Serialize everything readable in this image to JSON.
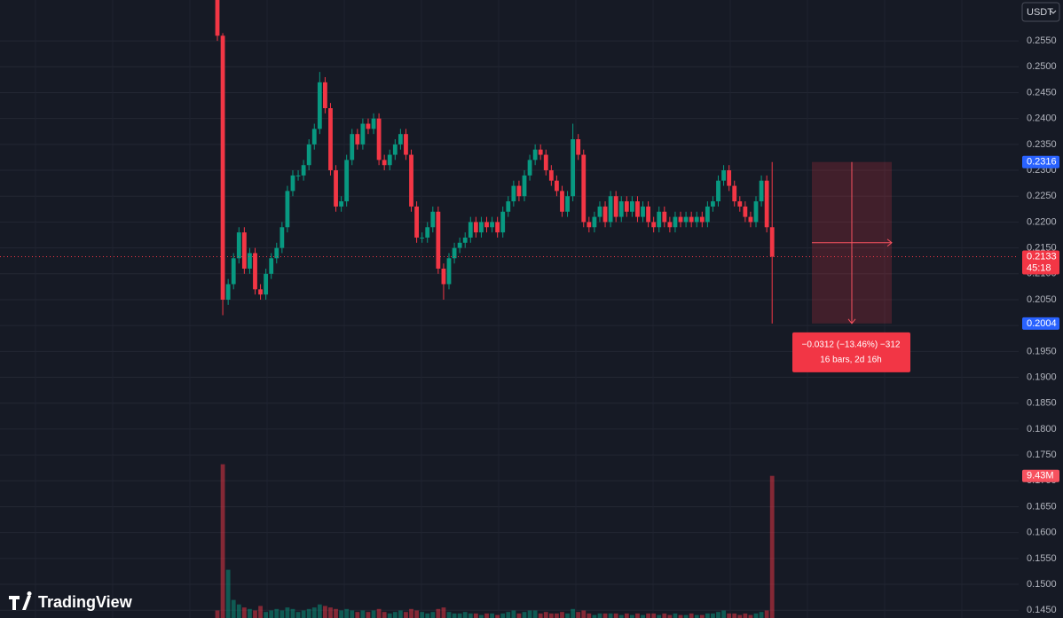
{
  "chart_data": {
    "type": "candlestick",
    "currency": "USDT",
    "up_color": "#089981",
    "down_color": "#f23645",
    "grid": true,
    "ylim": [
      0.1435,
      0.2629
    ],
    "yticks": [
      {
        "value": 0.145,
        "label": "0.1450"
      },
      {
        "value": 0.15,
        "label": "0.1500"
      },
      {
        "value": 0.155,
        "label": "0.1550"
      },
      {
        "value": 0.16,
        "label": "0.1600"
      },
      {
        "value": 0.165,
        "label": "0.1650"
      },
      {
        "value": 0.17,
        "label": "0.1700"
      },
      {
        "value": 0.175,
        "label": "0.1750"
      },
      {
        "value": 0.18,
        "label": "0.1800"
      },
      {
        "value": 0.185,
        "label": "0.1850"
      },
      {
        "value": 0.19,
        "label": "0.1900"
      },
      {
        "value": 0.195,
        "label": "0.1950"
      },
      {
        "value": 0.2,
        "label": "0.2000"
      },
      {
        "value": 0.205,
        "label": "0.2050"
      },
      {
        "value": 0.21,
        "label": "0.2100"
      },
      {
        "value": 0.215,
        "label": "0.2150"
      },
      {
        "value": 0.22,
        "label": "0.2200"
      },
      {
        "value": 0.225,
        "label": "0.2250"
      },
      {
        "value": 0.23,
        "label": "0.2300"
      },
      {
        "value": 0.235,
        "label": "0.2350"
      },
      {
        "value": 0.24,
        "label": "0.2400"
      },
      {
        "value": 0.245,
        "label": "0.2450"
      },
      {
        "value": 0.25,
        "label": "0.2500"
      },
      {
        "value": 0.255,
        "label": "0.2550"
      }
    ],
    "open": [
      0.264,
      0.256,
      0.205,
      0.208,
      0.213,
      0.218,
      0.211,
      0.214,
      0.207,
      0.206,
      0.21,
      0.213,
      0.215,
      0.219,
      0.226,
      0.229,
      0.229,
      0.231,
      0.235,
      0.238,
      0.247,
      0.242,
      0.23,
      0.223,
      0.224,
      0.232,
      0.237,
      0.235,
      0.239,
      0.238,
      0.24,
      0.232,
      0.231,
      0.233,
      0.235,
      0.237,
      0.233,
      0.223,
      0.217,
      0.217,
      0.219,
      0.222,
      0.211,
      0.208,
      0.213,
      0.215,
      0.216,
      0.217,
      0.22,
      0.218,
      0.22,
      0.219,
      0.22,
      0.218,
      0.222,
      0.224,
      0.227,
      0.225,
      0.229,
      0.232,
      0.234,
      0.233,
      0.23,
      0.228,
      0.226,
      0.222,
      0.225,
      0.236,
      0.233,
      0.22,
      0.219,
      0.221,
      0.223,
      0.22,
      0.225,
      0.221,
      0.224,
      0.222,
      0.224,
      0.221,
      0.223,
      0.22,
      0.219,
      0.222,
      0.22,
      0.219,
      0.221,
      0.22,
      0.221,
      0.22,
      0.221,
      0.22,
      0.223,
      0.224,
      0.228,
      0.23,
      0.227,
      0.224,
      0.223,
      0.221,
      0.22,
      0.224,
      0.228,
      0.219
    ],
    "high": [
      0.265,
      0.2565,
      0.209,
      0.214,
      0.219,
      0.219,
      0.215,
      0.215,
      0.208,
      0.211,
      0.214,
      0.216,
      0.22,
      0.227,
      0.23,
      0.23,
      0.232,
      0.236,
      0.239,
      0.249,
      0.248,
      0.243,
      0.231,
      0.225,
      0.233,
      0.238,
      0.238,
      0.24,
      0.24,
      0.241,
      0.241,
      0.233,
      0.234,
      0.236,
      0.238,
      0.238,
      0.234,
      0.224,
      0.218,
      0.22,
      0.223,
      0.223,
      0.212,
      0.214,
      0.216,
      0.217,
      0.218,
      0.221,
      0.221,
      0.221,
      0.221,
      0.221,
      0.221,
      0.223,
      0.225,
      0.228,
      0.228,
      0.23,
      0.233,
      0.235,
      0.235,
      0.234,
      0.231,
      0.229,
      0.227,
      0.226,
      0.239,
      0.237,
      0.234,
      0.221,
      0.222,
      0.224,
      0.224,
      0.226,
      0.226,
      0.225,
      0.225,
      0.225,
      0.225,
      0.224,
      0.224,
      0.221,
      0.223,
      0.223,
      0.221,
      0.222,
      0.222,
      0.222,
      0.222,
      0.222,
      0.222,
      0.224,
      0.225,
      0.229,
      0.231,
      0.231,
      0.228,
      0.225,
      0.224,
      0.222,
      0.225,
      0.229,
      0.229,
      0.2316
    ],
    "low": [
      0.255,
      0.202,
      0.204,
      0.207,
      0.212,
      0.21,
      0.21,
      0.206,
      0.205,
      0.205,
      0.209,
      0.212,
      0.214,
      0.218,
      0.225,
      0.228,
      0.228,
      0.23,
      0.234,
      0.237,
      0.241,
      0.229,
      0.222,
      0.222,
      0.223,
      0.231,
      0.234,
      0.234,
      0.237,
      0.237,
      0.231,
      0.23,
      0.23,
      0.232,
      0.234,
      0.232,
      0.222,
      0.216,
      0.216,
      0.216,
      0.218,
      0.21,
      0.205,
      0.207,
      0.212,
      0.214,
      0.215,
      0.216,
      0.217,
      0.217,
      0.218,
      0.218,
      0.217,
      0.217,
      0.221,
      0.223,
      0.224,
      0.224,
      0.228,
      0.231,
      0.232,
      0.229,
      0.227,
      0.225,
      0.221,
      0.221,
      0.224,
      0.232,
      0.219,
      0.218,
      0.218,
      0.22,
      0.219,
      0.219,
      0.22,
      0.22,
      0.221,
      0.221,
      0.22,
      0.22,
      0.219,
      0.218,
      0.218,
      0.219,
      0.218,
      0.218,
      0.219,
      0.219,
      0.219,
      0.219,
      0.219,
      0.219,
      0.222,
      0.223,
      0.227,
      0.226,
      0.223,
      0.222,
      0.22,
      0.219,
      0.219,
      0.223,
      0.218,
      0.2004
    ],
    "close": [
      0.256,
      0.205,
      0.208,
      0.213,
      0.218,
      0.211,
      0.214,
      0.207,
      0.206,
      0.21,
      0.213,
      0.215,
      0.219,
      0.226,
      0.229,
      0.229,
      0.231,
      0.235,
      0.238,
      0.247,
      0.242,
      0.23,
      0.223,
      0.224,
      0.232,
      0.237,
      0.235,
      0.239,
      0.238,
      0.24,
      0.232,
      0.231,
      0.233,
      0.235,
      0.237,
      0.233,
      0.223,
      0.217,
      0.217,
      0.219,
      0.222,
      0.211,
      0.208,
      0.213,
      0.215,
      0.216,
      0.217,
      0.22,
      0.218,
      0.22,
      0.219,
      0.22,
      0.218,
      0.222,
      0.224,
      0.227,
      0.225,
      0.229,
      0.232,
      0.234,
      0.233,
      0.23,
      0.228,
      0.226,
      0.222,
      0.225,
      0.236,
      0.233,
      0.22,
      0.219,
      0.221,
      0.223,
      0.22,
      0.225,
      0.221,
      0.224,
      0.222,
      0.224,
      0.221,
      0.223,
      0.22,
      0.219,
      0.222,
      0.22,
      0.219,
      0.221,
      0.22,
      0.221,
      0.22,
      0.221,
      0.22,
      0.223,
      0.224,
      0.228,
      0.23,
      0.227,
      0.224,
      0.223,
      0.221,
      0.22,
      0.224,
      0.228,
      0.219,
      0.2133
    ],
    "volume": [
      500000,
      10200000,
      3200000,
      1200000,
      900000,
      700000,
      600000,
      500000,
      800000,
      400000,
      500000,
      600000,
      500000,
      700000,
      600000,
      400000,
      500000,
      600000,
      700000,
      900000,
      800000,
      700000,
      600000,
      500000,
      600000,
      500000,
      400000,
      500000,
      400000,
      500000,
      600000,
      400000,
      300000,
      400000,
      500000,
      400000,
      600000,
      500000,
      400000,
      300000,
      400000,
      600000,
      700000,
      400000,
      300000,
      300000,
      400000,
      300000,
      300000,
      200000,
      300000,
      300000,
      200000,
      300000,
      400000,
      500000,
      300000,
      400000,
      500000,
      500000,
      300000,
      400000,
      300000,
      300000,
      400000,
      300000,
      600000,
      400000,
      500000,
      300000,
      200000,
      300000,
      300000,
      300000,
      300000,
      200000,
      300000,
      200000,
      300000,
      200000,
      300000,
      300000,
      200000,
      300000,
      200000,
      300000,
      200000,
      200000,
      300000,
      200000,
      200000,
      300000,
      300000,
      400000,
      500000,
      300000,
      300000,
      200000,
      300000,
      200000,
      300000,
      400000,
      500000,
      9430000
    ],
    "volume_tag": {
      "value": 9430000,
      "label": "9.43M"
    },
    "high_tag": {
      "value": 0.2316,
      "label": "0.2316"
    },
    "last_price": {
      "value": 0.2133,
      "label": "0.2133"
    },
    "countdown": "45:18",
    "low_tag": {
      "value": 0.2004,
      "label": "0.2004"
    },
    "measure": {
      "line1": "−0.0312 (−13.46%) −312",
      "line2": "16 bars, 2d 16h"
    },
    "watermark": "TradingView"
  }
}
